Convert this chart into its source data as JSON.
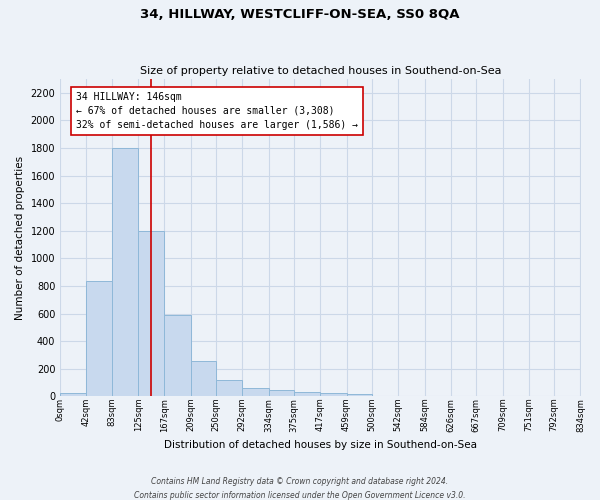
{
  "title": "34, HILLWAY, WESTCLIFF-ON-SEA, SS0 8QA",
  "subtitle": "Size of property relative to detached houses in Southend-on-Sea",
  "xlabel": "Distribution of detached houses by size in Southend-on-Sea",
  "ylabel": "Number of detached properties",
  "bar_edges": [
    0,
    42,
    83,
    125,
    167,
    209,
    250,
    292,
    334,
    375,
    417,
    459,
    500,
    542,
    584,
    626,
    667,
    709,
    751,
    792,
    834
  ],
  "bar_heights": [
    25,
    835,
    1800,
    1200,
    590,
    255,
    115,
    60,
    42,
    30,
    22,
    15,
    0,
    0,
    0,
    0,
    0,
    0,
    0,
    0
  ],
  "bar_color": "#c8d9ee",
  "bar_edge_color": "#8fb8d8",
  "property_line_x": 146,
  "property_line_color": "#cc0000",
  "annotation_title": "34 HILLWAY: 146sqm",
  "annotation_line1": "← 67% of detached houses are smaller (3,308)",
  "annotation_line2": "32% of semi-detached houses are larger (1,586) →",
  "annotation_box_color": "#ffffff",
  "annotation_box_edge_color": "#cc0000",
  "tick_labels": [
    "0sqm",
    "42sqm",
    "83sqm",
    "125sqm",
    "167sqm",
    "209sqm",
    "250sqm",
    "292sqm",
    "334sqm",
    "375sqm",
    "417sqm",
    "459sqm",
    "500sqm",
    "542sqm",
    "584sqm",
    "626sqm",
    "667sqm",
    "709sqm",
    "751sqm",
    "792sqm",
    "834sqm"
  ],
  "yticks": [
    0,
    200,
    400,
    600,
    800,
    1000,
    1200,
    1400,
    1600,
    1800,
    2000,
    2200
  ],
  "ylim": [
    0,
    2300
  ],
  "xlim": [
    0,
    834
  ],
  "grid_color": "#ccd8e8",
  "background_color": "#edf2f8",
  "footer_line1": "Contains HM Land Registry data © Crown copyright and database right 2024.",
  "footer_line2": "Contains public sector information licensed under the Open Government Licence v3.0."
}
